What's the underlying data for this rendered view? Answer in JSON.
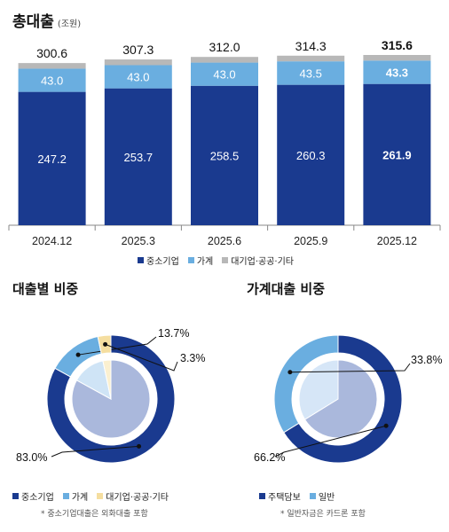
{
  "header": {
    "title": "총대출",
    "unit": "(조원)"
  },
  "colors": {
    "sme": "#1a3a8f",
    "household": "#6aaee0",
    "other": "#b8b8b8",
    "other_share": "#f5dea0"
  },
  "chart_data": [
    {
      "type": "bar",
      "stacked": true,
      "title": "총대출",
      "unit": "(조원)",
      "categories": [
        "2024.12",
        "2025.3",
        "2025.6",
        "2025.9",
        "2025.12"
      ],
      "totals": [
        "300.6",
        "307.3",
        "312.0",
        "314.3",
        "315.6"
      ],
      "highlight_index": 4,
      "series": [
        {
          "name": "중소기업",
          "values": [
            247.2,
            253.7,
            258.5,
            260.3,
            261.9
          ],
          "labels": [
            "247.2",
            "253.7",
            "258.5",
            "260.3",
            "261.9"
          ]
        },
        {
          "name": "가계",
          "values": [
            43.0,
            43.0,
            43.0,
            43.5,
            43.3
          ],
          "labels": [
            "43.0",
            "43.0",
            "43.0",
            "43.5",
            "43.3"
          ]
        },
        {
          "name": "대기업·공공·기타",
          "values": [
            10.4,
            10.6,
            10.5,
            10.5,
            10.4
          ]
        }
      ],
      "legend": [
        "중소기업",
        "가계",
        "대기업·공공·기타"
      ],
      "legend_position": "bottom"
    },
    {
      "type": "pie",
      "donut": true,
      "title": "대출별 비중",
      "slices": [
        {
          "name": "중소기업",
          "value": 83.0,
          "label": "83.0%"
        },
        {
          "name": "가계",
          "value": 13.7,
          "label": "13.7%"
        },
        {
          "name": "대기업·공공·기타",
          "value": 3.3,
          "label": "3.3%"
        }
      ],
      "legend": [
        "중소기업",
        "가계",
        "대기업·공공·기타"
      ],
      "footnote": "* 중소기업대출은 외화대출 포함"
    },
    {
      "type": "pie",
      "donut": true,
      "title": "가계대출 비중",
      "slices": [
        {
          "name": "주택담보",
          "value": 66.2,
          "label": "66.2%"
        },
        {
          "name": "일반",
          "value": 33.8,
          "label": "33.8%"
        }
      ],
      "legend": [
        "주택담보",
        "일반"
      ],
      "footnote": "* 일반자금은 카드론 포함"
    }
  ]
}
